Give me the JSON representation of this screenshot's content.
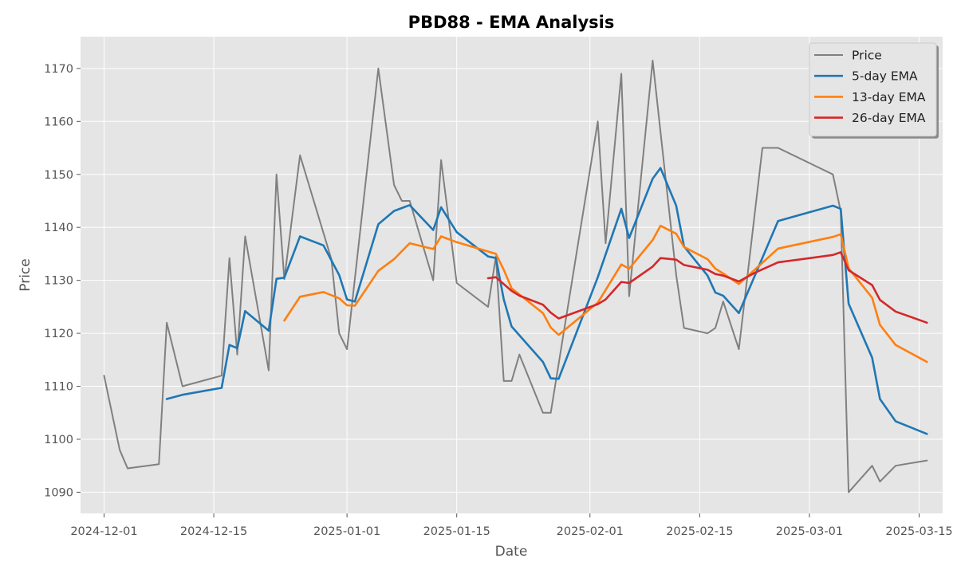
{
  "chart_data": {
    "type": "line",
    "title": "PBD88 - EMA Analysis",
    "xlabel": "Date",
    "ylabel": "Price",
    "xlim": [
      "2024-11-28",
      "2025-03-18"
    ],
    "ylim": [
      1086,
      1176
    ],
    "x_ticks": [
      "2024-12-01",
      "2024-12-15",
      "2025-01-01",
      "2025-01-15",
      "2025-02-01",
      "2025-02-15",
      "2025-03-01",
      "2025-03-15"
    ],
    "y_ticks": [
      1090,
      1100,
      1110,
      1120,
      1130,
      1140,
      1150,
      1160,
      1170
    ],
    "grid": true,
    "legend_position": "top-right",
    "series": [
      {
        "name": "Price",
        "color": "#808080",
        "points": [
          [
            "2024-12-01",
            1112
          ],
          [
            "2024-12-03",
            1098
          ],
          [
            "2024-12-04",
            1094.5
          ],
          [
            "2024-12-08",
            1095.3
          ],
          [
            "2024-12-09",
            1122
          ],
          [
            "2024-12-11",
            1110
          ],
          [
            "2024-12-16",
            1112
          ],
          [
            "2024-12-17",
            1134.2
          ],
          [
            "2024-12-18",
            1116
          ],
          [
            "2024-12-19",
            1138.3
          ],
          [
            "2024-12-22",
            1113
          ],
          [
            "2024-12-23",
            1150
          ],
          [
            "2024-12-24",
            1130.2
          ],
          [
            "2024-12-26",
            1153.6
          ],
          [
            "2024-12-30",
            1134
          ],
          [
            "2024-12-31",
            1120
          ],
          [
            "2025-01-01",
            1117
          ],
          [
            "2025-01-05",
            1170
          ],
          [
            "2025-01-07",
            1148
          ],
          [
            "2025-01-08",
            1145
          ],
          [
            "2025-01-09",
            1145
          ],
          [
            "2025-01-12",
            1130
          ],
          [
            "2025-01-13",
            1152.7
          ],
          [
            "2025-01-15",
            1129.5
          ],
          [
            "2025-01-19",
            1125
          ],
          [
            "2025-01-20",
            1134.5
          ],
          [
            "2025-01-21",
            1111
          ],
          [
            "2025-01-22",
            1111
          ],
          [
            "2025-01-23",
            1116
          ],
          [
            "2025-01-26",
            1105
          ],
          [
            "2025-01-27",
            1105
          ],
          [
            "2025-02-02",
            1160
          ],
          [
            "2025-02-03",
            1137
          ],
          [
            "2025-02-05",
            1169
          ],
          [
            "2025-02-06",
            1127
          ],
          [
            "2025-02-09",
            1171.5
          ],
          [
            "2025-02-12",
            1131
          ],
          [
            "2025-02-13",
            1121
          ],
          [
            "2025-02-16",
            1120
          ],
          [
            "2025-02-17",
            1121
          ],
          [
            "2025-02-18",
            1126
          ],
          [
            "2025-02-20",
            1117
          ],
          [
            "2025-02-23",
            1155
          ],
          [
            "2025-02-25",
            1155
          ],
          [
            "2025-03-04",
            1150
          ],
          [
            "2025-03-05",
            1143
          ],
          [
            "2025-03-06",
            1090
          ],
          [
            "2025-03-09",
            1095
          ],
          [
            "2025-03-10",
            1092
          ],
          [
            "2025-03-12",
            1095
          ],
          [
            "2025-03-16",
            1096
          ]
        ]
      },
      {
        "name": "5-day EMA",
        "color": "#1f77b4",
        "points": [
          [
            "2024-12-09",
            1107.6
          ],
          [
            "2024-12-11",
            1108.4
          ],
          [
            "2024-12-16",
            1109.7
          ],
          [
            "2024-12-17",
            1117.8
          ],
          [
            "2024-12-18",
            1117.2
          ],
          [
            "2024-12-19",
            1124.2
          ],
          [
            "2024-12-22",
            1120.5
          ],
          [
            "2024-12-23",
            1130.3
          ],
          [
            "2024-12-24",
            1130.5
          ],
          [
            "2024-12-26",
            1138.3
          ],
          [
            "2024-12-29",
            1136.6
          ],
          [
            "2024-12-31",
            1131
          ],
          [
            "2025-01-01",
            1126.4
          ],
          [
            "2025-01-02",
            1126
          ],
          [
            "2025-01-05",
            1140.6
          ],
          [
            "2025-01-07",
            1143.1
          ],
          [
            "2025-01-09",
            1144.2
          ],
          [
            "2025-01-12",
            1139.5
          ],
          [
            "2025-01-13",
            1143.8
          ],
          [
            "2025-01-15",
            1139.1
          ],
          [
            "2025-01-19",
            1134.5
          ],
          [
            "2025-01-20",
            1134.2
          ],
          [
            "2025-01-21",
            1126.4
          ],
          [
            "2025-01-22",
            1121.3
          ],
          [
            "2025-01-26",
            1114.6
          ],
          [
            "2025-01-27",
            1111.5
          ],
          [
            "2025-01-28",
            1111.4
          ],
          [
            "2025-02-02",
            1130.6
          ],
          [
            "2025-02-05",
            1143.5
          ],
          [
            "2025-02-06",
            1138
          ],
          [
            "2025-02-09",
            1149.2
          ],
          [
            "2025-02-10",
            1151.2
          ],
          [
            "2025-02-12",
            1144.1
          ],
          [
            "2025-02-13",
            1136.4
          ],
          [
            "2025-02-16",
            1130.9
          ],
          [
            "2025-02-17",
            1127.7
          ],
          [
            "2025-02-18",
            1127.1
          ],
          [
            "2025-02-20",
            1123.8
          ],
          [
            "2025-02-25",
            1141.2
          ],
          [
            "2025-03-04",
            1144.1
          ],
          [
            "2025-03-05",
            1143.5
          ],
          [
            "2025-03-06",
            1125.6
          ],
          [
            "2025-03-09",
            1115.4
          ],
          [
            "2025-03-10",
            1107.6
          ],
          [
            "2025-03-12",
            1103.4
          ],
          [
            "2025-03-16",
            1101
          ]
        ]
      },
      {
        "name": "13-day EMA",
        "color": "#ff7f0e",
        "points": [
          [
            "2024-12-24",
            1122.4
          ],
          [
            "2024-12-26",
            1126.9
          ],
          [
            "2024-12-29",
            1127.8
          ],
          [
            "2024-12-31",
            1126.6
          ],
          [
            "2025-01-01",
            1125.3
          ],
          [
            "2025-01-02",
            1125.2
          ],
          [
            "2025-01-05",
            1131.8
          ],
          [
            "2025-01-07",
            1134
          ],
          [
            "2025-01-09",
            1137
          ],
          [
            "2025-01-12",
            1135.9
          ],
          [
            "2025-01-13",
            1138.3
          ],
          [
            "2025-01-15",
            1137.2
          ],
          [
            "2025-01-20",
            1135
          ],
          [
            "2025-01-21",
            1132
          ],
          [
            "2025-01-22",
            1128.5
          ],
          [
            "2025-01-26",
            1123.8
          ],
          [
            "2025-01-27",
            1121.1
          ],
          [
            "2025-01-28",
            1119.7
          ],
          [
            "2025-02-02",
            1125.8
          ],
          [
            "2025-02-05",
            1133
          ],
          [
            "2025-02-06",
            1132.2
          ],
          [
            "2025-02-09",
            1137.6
          ],
          [
            "2025-02-10",
            1140.3
          ],
          [
            "2025-02-12",
            1138.8
          ],
          [
            "2025-02-13",
            1136.3
          ],
          [
            "2025-02-16",
            1134
          ],
          [
            "2025-02-17",
            1132.2
          ],
          [
            "2025-02-18",
            1131.3
          ],
          [
            "2025-02-20",
            1129.3
          ],
          [
            "2025-02-25",
            1136
          ],
          [
            "2025-03-04",
            1138.2
          ],
          [
            "2025-03-05",
            1138.7
          ],
          [
            "2025-03-06",
            1132.3
          ],
          [
            "2025-03-09",
            1126.7
          ],
          [
            "2025-03-10",
            1121.6
          ],
          [
            "2025-03-12",
            1117.8
          ],
          [
            "2025-03-16",
            1114.6
          ]
        ]
      },
      {
        "name": "26-day EMA",
        "color": "#d62728",
        "points": [
          [
            "2025-01-19",
            1130.4
          ],
          [
            "2025-01-20",
            1130.6
          ],
          [
            "2025-01-22",
            1128
          ],
          [
            "2025-01-23",
            1127.1
          ],
          [
            "2025-01-26",
            1125.4
          ],
          [
            "2025-01-27",
            1123.9
          ],
          [
            "2025-01-28",
            1122.8
          ],
          [
            "2025-02-02",
            1125.5
          ],
          [
            "2025-02-03",
            1126.4
          ],
          [
            "2025-02-05",
            1129.7
          ],
          [
            "2025-02-06",
            1129.5
          ],
          [
            "2025-02-09",
            1132.6
          ],
          [
            "2025-02-10",
            1134.2
          ],
          [
            "2025-02-12",
            1133.9
          ],
          [
            "2025-02-13",
            1132.9
          ],
          [
            "2025-02-16",
            1132
          ],
          [
            "2025-02-17",
            1131.2
          ],
          [
            "2025-02-18",
            1130.9
          ],
          [
            "2025-02-20",
            1129.8
          ],
          [
            "2025-02-22",
            1131.4
          ],
          [
            "2025-02-25",
            1133.4
          ],
          [
            "2025-03-04",
            1134.8
          ],
          [
            "2025-03-05",
            1135.3
          ],
          [
            "2025-03-06",
            1131.9
          ],
          [
            "2025-03-09",
            1129.1
          ],
          [
            "2025-03-10",
            1126.3
          ],
          [
            "2025-03-12",
            1124.1
          ],
          [
            "2025-03-16",
            1122
          ]
        ]
      }
    ]
  }
}
